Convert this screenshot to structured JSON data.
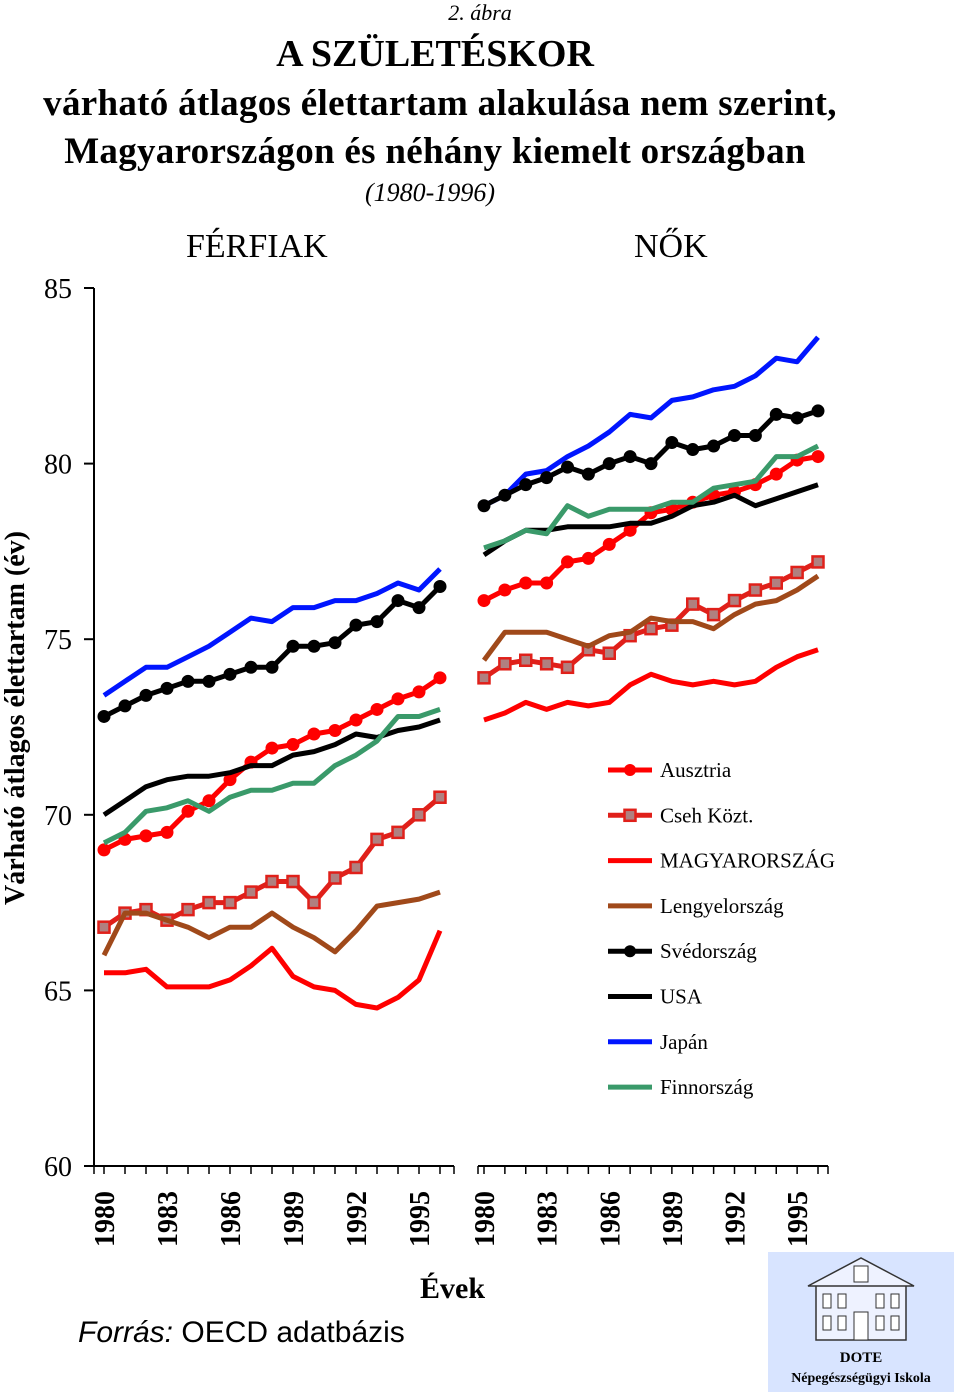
{
  "figure_caption": "2. ábra",
  "title_line1": "A SZÜLETÉSKOR",
  "title_line2": "várható átlagos élettartam alakulása nem szerint,",
  "title_line3": "Magyarországon és néhány kiemelt országban",
  "title_years": "(1980-1996)",
  "panel_left_title": "FÉRFIAK",
  "panel_right_title": "NŐK",
  "ylabel": "Várható átlagos élettartam (év)",
  "xlabel": "Évek",
  "source_label": "Forrás:",
  "source_text": "OECD adatbázis",
  "logo": {
    "line1": "DOTE",
    "line2": "Népegészségügyi Iskola",
    "icon": "building-icon"
  },
  "colors": {
    "Ausztria": "#ff0000",
    "Cseh Közt.": "#e0201a",
    "MAGYARORSZÁG": "#ff0000",
    "Lengyelország": "#a0491a",
    "Svédország": "#000000",
    "USA": "#000000",
    "Japán": "#0015ff",
    "Finnország": "#3a9a6a"
  },
  "chart_data": {
    "type": "line",
    "ylim": [
      60,
      85
    ],
    "yticks": [
      60,
      65,
      70,
      75,
      80,
      85
    ],
    "x": [
      1980,
      1981,
      1982,
      1983,
      1984,
      1985,
      1986,
      1987,
      1988,
      1989,
      1990,
      1991,
      1992,
      1993,
      1994,
      1995,
      1996
    ],
    "xtick_labels": [
      "1980",
      "1983",
      "1986",
      "1989",
      "1992",
      "1995"
    ],
    "legend_position": "right, lower half of the NŐK panel",
    "legend": [
      {
        "name": "Ausztria",
        "marker": "circle"
      },
      {
        "name": "Cseh Közt.",
        "marker": "square"
      },
      {
        "name": "MAGYARORSZÁG",
        "marker": "none"
      },
      {
        "name": "Lengyelország",
        "marker": "none"
      },
      {
        "name": "Svédország",
        "marker": "circle"
      },
      {
        "name": "USA",
        "marker": "none"
      },
      {
        "name": "Japán",
        "marker": "none"
      },
      {
        "name": "Finnország",
        "marker": "none"
      }
    ],
    "panels": [
      {
        "title": "FÉRFIAK",
        "series": [
          {
            "name": "Japán",
            "values": [
              73.4,
              73.8,
              74.2,
              74.2,
              74.5,
              74.8,
              75.2,
              75.6,
              75.5,
              75.9,
              75.9,
              76.1,
              76.1,
              76.3,
              76.6,
              76.4,
              77.0
            ]
          },
          {
            "name": "Svédország",
            "values": [
              72.8,
              73.1,
              73.4,
              73.6,
              73.8,
              73.8,
              74.0,
              74.2,
              74.2,
              74.8,
              74.8,
              74.9,
              75.4,
              75.5,
              76.1,
              75.9,
              76.5
            ]
          },
          {
            "name": "Ausztria",
            "values": [
              69.0,
              69.3,
              69.4,
              69.5,
              70.1,
              70.4,
              71.0,
              71.5,
              71.9,
              72.0,
              72.3,
              72.4,
              72.7,
              73.0,
              73.3,
              73.5,
              73.9
            ]
          },
          {
            "name": "USA",
            "values": [
              70.0,
              70.4,
              70.8,
              71.0,
              71.1,
              71.1,
              71.2,
              71.4,
              71.4,
              71.7,
              71.8,
              72.0,
              72.3,
              72.2,
              72.4,
              72.5,
              72.7
            ]
          },
          {
            "name": "Finnország",
            "values": [
              69.2,
              69.5,
              70.1,
              70.2,
              70.4,
              70.1,
              70.5,
              70.7,
              70.7,
              70.9,
              70.9,
              71.4,
              71.7,
              72.1,
              72.8,
              72.8,
              73.0
            ]
          },
          {
            "name": "Cseh Közt.",
            "values": [
              66.8,
              67.2,
              67.3,
              67.0,
              67.3,
              67.5,
              67.5,
              67.8,
              68.1,
              68.1,
              67.5,
              68.2,
              68.5,
              69.3,
              69.5,
              70.0,
              70.5
            ]
          },
          {
            "name": "Lengyelország",
            "values": [
              66.0,
              67.2,
              67.2,
              67.0,
              66.8,
              66.5,
              66.8,
              66.8,
              67.2,
              66.8,
              66.5,
              66.1,
              66.7,
              67.4,
              67.5,
              67.6,
              67.8
            ]
          },
          {
            "name": "MAGYARORSZÁG",
            "values": [
              65.5,
              65.5,
              65.6,
              65.1,
              65.1,
              65.1,
              65.3,
              65.7,
              66.2,
              65.4,
              65.1,
              65.0,
              64.6,
              64.5,
              64.8,
              65.3,
              66.7
            ]
          }
        ]
      },
      {
        "title": "NŐK",
        "series": [
          {
            "name": "Japán",
            "values": [
              78.8,
              79.1,
              79.7,
              79.8,
              80.2,
              80.5,
              80.9,
              81.4,
              81.3,
              81.8,
              81.9,
              82.1,
              82.2,
              82.5,
              83.0,
              82.9,
              83.6
            ]
          },
          {
            "name": "Svédország",
            "values": [
              78.8,
              79.1,
              79.4,
              79.6,
              79.9,
              79.7,
              80.0,
              80.2,
              80.0,
              80.6,
              80.4,
              80.5,
              80.8,
              80.8,
              81.4,
              81.3,
              81.5
            ]
          },
          {
            "name": "Ausztria",
            "values": [
              76.1,
              76.4,
              76.6,
              76.6,
              77.2,
              77.3,
              77.7,
              78.1,
              78.6,
              78.7,
              78.9,
              79.1,
              79.2,
              79.4,
              79.7,
              80.1,
              80.2
            ]
          },
          {
            "name": "USA",
            "values": [
              77.4,
              77.8,
              78.1,
              78.1,
              78.2,
              78.2,
              78.2,
              78.3,
              78.3,
              78.5,
              78.8,
              78.9,
              79.1,
              78.8,
              79.0,
              79.2,
              79.4
            ]
          },
          {
            "name": "Finnország",
            "values": [
              77.6,
              77.8,
              78.1,
              78.0,
              78.8,
              78.5,
              78.7,
              78.7,
              78.7,
              78.9,
              78.9,
              79.3,
              79.4,
              79.5,
              80.2,
              80.2,
              80.5
            ]
          },
          {
            "name": "Cseh Közt.",
            "values": [
              73.9,
              74.3,
              74.4,
              74.3,
              74.2,
              74.7,
              74.6,
              75.1,
              75.3,
              75.4,
              76.0,
              75.7,
              76.1,
              76.4,
              76.6,
              76.9,
              77.2
            ]
          },
          {
            "name": "Lengyelország",
            "values": [
              74.4,
              75.2,
              75.2,
              75.2,
              75.0,
              74.8,
              75.1,
              75.2,
              75.6,
              75.5,
              75.5,
              75.3,
              75.7,
              76.0,
              76.1,
              76.4,
              76.8
            ]
          },
          {
            "name": "MAGYARORSZÁG",
            "values": [
              72.7,
              72.9,
              73.2,
              73.0,
              73.2,
              73.1,
              73.2,
              73.7,
              74.0,
              73.8,
              73.7,
              73.8,
              73.7,
              73.8,
              74.2,
              74.5,
              74.7
            ]
          }
        ]
      }
    ]
  }
}
